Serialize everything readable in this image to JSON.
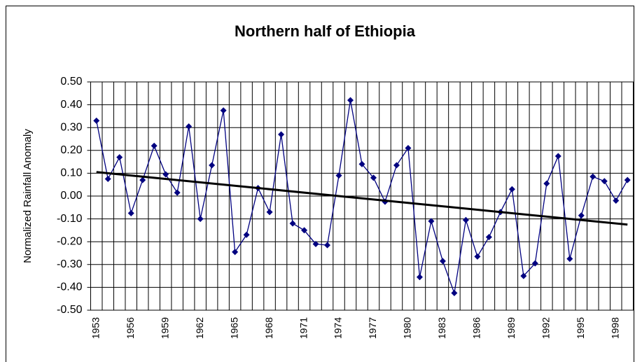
{
  "chart_data": {
    "type": "line",
    "title": "Northern half of Ethiopia",
    "y_label": "Normalized Rainfall Anomaly",
    "categories": [
      "1953",
      null,
      null,
      "1956",
      null,
      null,
      "1959",
      null,
      null,
      "1962",
      null,
      null,
      "1965",
      null,
      null,
      "1968",
      null,
      null,
      "1971",
      null,
      null,
      "1974",
      null,
      null,
      "1977",
      null,
      null,
      "1980",
      null,
      null,
      "1983",
      null,
      null,
      "1986",
      null,
      null,
      "1989",
      null,
      null,
      "1992",
      null,
      null,
      "1995",
      null,
      null,
      "1998",
      null
    ],
    "series": [
      {
        "color": "#000080",
        "values": [
          0.33,
          0.075,
          0.17,
          -0.075,
          0.07,
          0.22,
          0.095,
          0.015,
          0.305,
          -0.1,
          0.135,
          0.375,
          -0.245,
          -0.17,
          0.035,
          -0.07,
          0.27,
          -0.12,
          -0.15,
          -0.21,
          -0.215,
          0.09,
          0.42,
          0.14,
          0.08,
          -0.025,
          0.135,
          0.21,
          -0.355,
          -0.11,
          -0.285,
          -0.425,
          -0.105,
          -0.265,
          -0.18,
          -0.07,
          0.03,
          -0.35,
          -0.295,
          0.055,
          0.175,
          -0.275,
          -0.085,
          0.085,
          0.065,
          -0.02,
          0.07
        ]
      }
    ],
    "trendline": {
      "color": "#000000",
      "values": [
        0.105,
        -0.125
      ]
    },
    "ylim": [
      -0.5,
      0.5
    ],
    "yticks": [
      {
        "value": -0.5,
        "label": "-0.50"
      },
      {
        "value": -0.4,
        "label": "-0.40"
      },
      {
        "value": -0.3,
        "label": "-0.30"
      },
      {
        "value": -0.2,
        "label": "-0.20"
      },
      {
        "value": -0.1,
        "label": "-0.10"
      },
      {
        "value": 0,
        "label": "0.00"
      },
      {
        "value": 0.1,
        "label": "0.10"
      },
      {
        "value": 0.2,
        "label": "0.20"
      },
      {
        "value": 0.3,
        "label": "0.30"
      },
      {
        "value": 0.4,
        "label": "0.40"
      },
      {
        "value": 0.5,
        "label": "0.50"
      }
    ],
    "grid": true
  }
}
